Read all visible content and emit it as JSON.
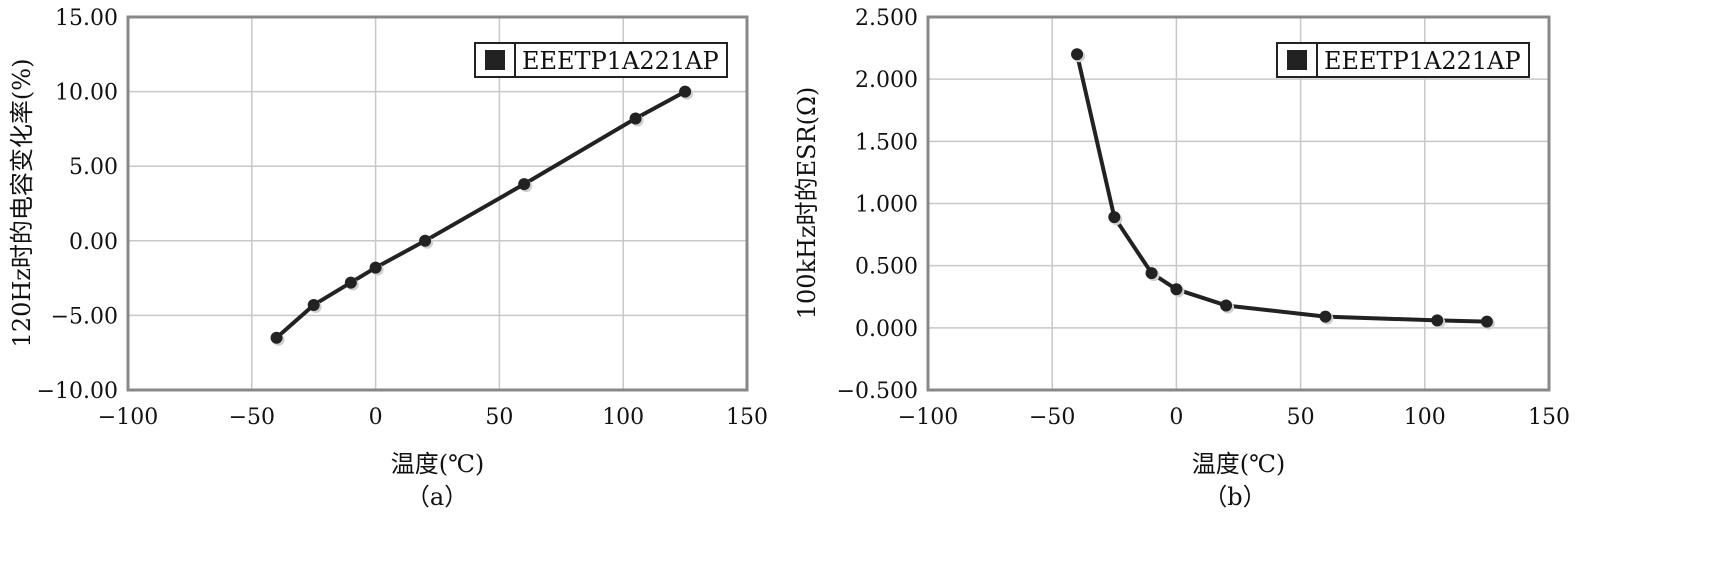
{
  "chart_data": [
    {
      "type": "line",
      "caption": "（a）",
      "xlabel": "温度(℃)",
      "ylabel": "120Hz时的电容变化率(%)",
      "xlim": [
        -100,
        150
      ],
      "ylim": [
        -10,
        15
      ],
      "x_ticks": [
        -100,
        -50,
        0,
        50,
        100,
        150
      ],
      "x_tick_labels": [
        "−100",
        "−50",
        "0",
        "50",
        "100",
        "150"
      ],
      "y_ticks": [
        -10,
        -5,
        0,
        5,
        10,
        15
      ],
      "y_tick_labels": [
        "−10.00",
        "−5.00",
        "0.00",
        "5.00",
        "10.00",
        "15.00"
      ],
      "grid": true,
      "legend_position": "top-right",
      "series": [
        {
          "name": "EEETP1A221AP",
          "color": "#222222",
          "x": [
            -40,
            -25,
            -10,
            0,
            20,
            60,
            105,
            125
          ],
          "y": [
            -6.5,
            -4.3,
            -2.8,
            -1.8,
            0.0,
            3.8,
            8.2,
            10.0
          ]
        }
      ]
    },
    {
      "type": "line",
      "caption": "（b）",
      "xlabel": "温度(℃)",
      "ylabel": "100kHz时的ESR(Ω)",
      "xlim": [
        -100,
        150
      ],
      "ylim": [
        -0.5,
        2.5
      ],
      "x_ticks": [
        -100,
        -50,
        0,
        50,
        100,
        150
      ],
      "x_tick_labels": [
        "−100",
        "−50",
        "0",
        "50",
        "100",
        "150"
      ],
      "y_ticks": [
        -0.5,
        0,
        0.5,
        1.0,
        1.5,
        2.0,
        2.5
      ],
      "y_tick_labels": [
        "−0.500",
        "0.000",
        "0.500",
        "1.000",
        "1.500",
        "2.000",
        "2.500"
      ],
      "grid": true,
      "legend_position": "top-right",
      "series": [
        {
          "name": "EEETP1A221AP",
          "color": "#222222",
          "x": [
            -40,
            -25,
            -10,
            0,
            20,
            60,
            105,
            125
          ],
          "y": [
            2.2,
            0.89,
            0.44,
            0.31,
            0.18,
            0.09,
            0.06,
            0.05
          ]
        }
      ]
    }
  ]
}
